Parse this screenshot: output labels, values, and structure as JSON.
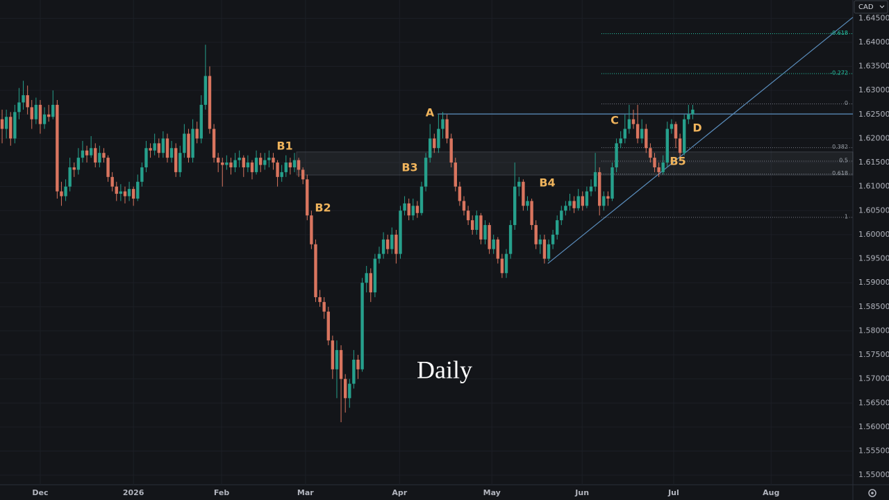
{
  "chart_data": {
    "type": "candlestick",
    "symbol": "CAD",
    "timeframe": "Daily",
    "colors": {
      "up": "#26a08c",
      "down": "#d9755f"
    },
    "xlim": [
      -0.5,
      200.8
    ],
    "xticks": [
      {
        "value": 9.0,
        "label": "Dec"
      },
      {
        "value": 31.0,
        "label": "2026"
      },
      {
        "value": 51.8,
        "label": "Feb"
      },
      {
        "value": 71.6,
        "label": "Mar"
      },
      {
        "value": 93.8,
        "label": "Apr"
      },
      {
        "value": 115.6,
        "label": "May"
      },
      {
        "value": 136.9,
        "label": "Jun"
      },
      {
        "value": 158.5,
        "label": "Jul"
      },
      {
        "value": 181.5,
        "label": "Aug"
      }
    ],
    "ylim": [
      1.548,
      1.6488
    ],
    "yticks": [
      {
        "value": 1.55,
        "label": "1.55000"
      },
      {
        "value": 1.555,
        "label": "1.55500"
      },
      {
        "value": 1.56,
        "label": "1.56000"
      },
      {
        "value": 1.565,
        "label": "1.56500"
      },
      {
        "value": 1.57,
        "label": "1.57000"
      },
      {
        "value": 1.575,
        "label": "1.57500"
      },
      {
        "value": 1.58,
        "label": "1.58000"
      },
      {
        "value": 1.585,
        "label": "1.58500"
      },
      {
        "value": 1.59,
        "label": "1.59000"
      },
      {
        "value": 1.595,
        "label": "1.59500"
      },
      {
        "value": 1.6,
        "label": "1.60000"
      },
      {
        "value": 1.605,
        "label": "1.60500"
      },
      {
        "value": 1.61,
        "label": "1.61000"
      },
      {
        "value": 1.615,
        "label": "1.61500"
      },
      {
        "value": 1.62,
        "label": "1.62000"
      },
      {
        "value": 1.625,
        "label": "1.62500"
      },
      {
        "value": 1.63,
        "label": "1.63000"
      },
      {
        "value": 1.635,
        "label": "1.63500"
      },
      {
        "value": 1.64,
        "label": "1.64000"
      },
      {
        "value": 1.645,
        "label": "1.64500"
      }
    ],
    "ohlc": [
      [
        1.624,
        1.626,
        1.619,
        1.622
      ],
      [
        1.622,
        1.626,
        1.62,
        1.6245
      ],
      [
        1.6245,
        1.6255,
        1.6185,
        1.62
      ],
      [
        1.62,
        1.627,
        1.619,
        1.6255
      ],
      [
        1.6255,
        1.6305,
        1.624,
        1.6275
      ],
      [
        1.6275,
        1.632,
        1.626,
        1.629
      ],
      [
        1.629,
        1.631,
        1.625,
        1.6265
      ],
      [
        1.6265,
        1.628,
        1.622,
        1.624
      ],
      [
        1.624,
        1.6285,
        1.623,
        1.627
      ],
      [
        1.627,
        1.628,
        1.621,
        1.623
      ],
      [
        1.623,
        1.6265,
        1.622,
        1.625
      ],
      [
        1.625,
        1.627,
        1.6235,
        1.6245
      ],
      [
        1.6245,
        1.63,
        1.624,
        1.627
      ],
      [
        1.627,
        1.628,
        1.6075,
        1.609
      ],
      [
        1.609,
        1.611,
        1.606,
        1.608
      ],
      [
        1.608,
        1.6115,
        1.607,
        1.61
      ],
      [
        1.61,
        1.616,
        1.609,
        1.614
      ],
      [
        1.614,
        1.615,
        1.612,
        1.6135
      ],
      [
        1.6135,
        1.618,
        1.6125,
        1.616
      ],
      [
        1.616,
        1.6195,
        1.615,
        1.6175
      ],
      [
        1.6175,
        1.6185,
        1.615,
        1.6165
      ],
      [
        1.6165,
        1.6205,
        1.616,
        1.618
      ],
      [
        1.618,
        1.619,
        1.614,
        1.615
      ],
      [
        1.615,
        1.6185,
        1.614,
        1.617
      ],
      [
        1.617,
        1.618,
        1.615,
        1.616
      ],
      [
        1.616,
        1.6165,
        1.611,
        1.612
      ],
      [
        1.612,
        1.613,
        1.609,
        1.61
      ],
      [
        1.61,
        1.611,
        1.607,
        1.6085
      ],
      [
        1.6085,
        1.6105,
        1.607,
        1.609
      ],
      [
        1.609,
        1.61,
        1.6065,
        1.608
      ],
      [
        1.608,
        1.611,
        1.607,
        1.6095
      ],
      [
        1.6095,
        1.61,
        1.606,
        1.6075
      ],
      [
        1.6075,
        1.6125,
        1.607,
        1.611
      ],
      [
        1.611,
        1.615,
        1.61,
        1.614
      ],
      [
        1.614,
        1.6195,
        1.613,
        1.618
      ],
      [
        1.618,
        1.619,
        1.616,
        1.6175
      ],
      [
        1.6175,
        1.621,
        1.6165,
        1.619
      ],
      [
        1.619,
        1.62,
        1.616,
        1.617
      ],
      [
        1.617,
        1.6215,
        1.616,
        1.62
      ],
      [
        1.62,
        1.621,
        1.615,
        1.616
      ],
      [
        1.616,
        1.6195,
        1.615,
        1.618
      ],
      [
        1.618,
        1.619,
        1.612,
        1.613
      ],
      [
        1.613,
        1.6185,
        1.612,
        1.617
      ],
      [
        1.617,
        1.623,
        1.616,
        1.621
      ],
      [
        1.621,
        1.622,
        1.615,
        1.616
      ],
      [
        1.616,
        1.624,
        1.615,
        1.622
      ],
      [
        1.622,
        1.6235,
        1.619,
        1.62
      ],
      [
        1.62,
        1.629,
        1.619,
        1.627
      ],
      [
        1.627,
        1.6395,
        1.626,
        1.633
      ],
      [
        1.633,
        1.635,
        1.621,
        1.622
      ],
      [
        1.622,
        1.623,
        1.615,
        1.616
      ],
      [
        1.616,
        1.617,
        1.613,
        1.615
      ],
      [
        1.615,
        1.616,
        1.61,
        1.6145
      ],
      [
        1.6145,
        1.6165,
        1.6135,
        1.615
      ],
      [
        1.615,
        1.616,
        1.6125,
        1.614
      ],
      [
        1.614,
        1.617,
        1.613,
        1.6155
      ],
      [
        1.6155,
        1.6175,
        1.614,
        1.616
      ],
      [
        1.616,
        1.6165,
        1.612,
        1.614
      ],
      [
        1.614,
        1.6165,
        1.613,
        1.615
      ],
      [
        1.615,
        1.6155,
        1.6115,
        1.613
      ],
      [
        1.613,
        1.6175,
        1.6125,
        1.616
      ],
      [
        1.616,
        1.617,
        1.613,
        1.6145
      ],
      [
        1.6145,
        1.617,
        1.6135,
        1.6155
      ],
      [
        1.6155,
        1.6175,
        1.614,
        1.616
      ],
      [
        1.616,
        1.617,
        1.6135,
        1.615
      ],
      [
        1.615,
        1.6155,
        1.61,
        1.612
      ],
      [
        1.612,
        1.6145,
        1.611,
        1.613
      ],
      [
        1.613,
        1.6165,
        1.612,
        1.615
      ],
      [
        1.615,
        1.616,
        1.6125,
        1.614
      ],
      [
        1.614,
        1.617,
        1.613,
        1.6155
      ],
      [
        1.6155,
        1.616,
        1.612,
        1.6135
      ],
      [
        1.6135,
        1.614,
        1.6105,
        1.6115
      ],
      [
        1.6115,
        1.6125,
        1.603,
        1.604
      ],
      [
        1.604,
        1.605,
        1.597,
        1.598
      ],
      [
        1.598,
        1.599,
        1.586,
        1.587
      ],
      [
        1.587,
        1.5885,
        1.585,
        1.586
      ],
      [
        1.586,
        1.587,
        1.5825,
        1.584
      ],
      [
        1.584,
        1.585,
        1.577,
        1.578
      ],
      [
        1.578,
        1.579,
        1.57,
        1.572
      ],
      [
        1.572,
        1.578,
        1.566,
        1.576
      ],
      [
        1.576,
        1.577,
        1.561,
        1.57
      ],
      [
        1.57,
        1.571,
        1.563,
        1.566
      ],
      [
        1.566,
        1.57,
        1.564,
        1.569
      ],
      [
        1.569,
        1.576,
        1.568,
        1.574
      ],
      [
        1.574,
        1.575,
        1.57,
        1.572
      ],
      [
        1.572,
        1.591,
        1.5715,
        1.59
      ],
      [
        1.59,
        1.5935,
        1.588,
        1.592
      ],
      [
        1.592,
        1.593,
        1.586,
        1.588
      ],
      [
        1.588,
        1.596,
        1.587,
        1.595
      ],
      [
        1.595,
        1.5975,
        1.594,
        1.596
      ],
      [
        1.596,
        1.6005,
        1.595,
        1.599
      ],
      [
        1.599,
        1.6,
        1.596,
        1.597
      ],
      [
        1.597,
        1.6015,
        1.596,
        1.6
      ],
      [
        1.6,
        1.601,
        1.594,
        1.596
      ],
      [
        1.596,
        1.606,
        1.595,
        1.605
      ],
      [
        1.605,
        1.608,
        1.604,
        1.6065
      ],
      [
        1.6065,
        1.6075,
        1.603,
        1.604
      ],
      [
        1.604,
        1.6075,
        1.603,
        1.606
      ],
      [
        1.606,
        1.607,
        1.6035,
        1.6045
      ],
      [
        1.6045,
        1.611,
        1.604,
        1.61
      ],
      [
        1.61,
        1.617,
        1.609,
        1.616
      ],
      [
        1.616,
        1.623,
        1.615,
        1.62
      ],
      [
        1.62,
        1.621,
        1.617,
        1.618
      ],
      [
        1.618,
        1.625,
        1.617,
        1.622
      ],
      [
        1.622,
        1.6255,
        1.62,
        1.624
      ],
      [
        1.624,
        1.625,
        1.619,
        1.62
      ],
      [
        1.62,
        1.621,
        1.614,
        1.615
      ],
      [
        1.615,
        1.616,
        1.609,
        1.61
      ],
      [
        1.61,
        1.611,
        1.606,
        1.607
      ],
      [
        1.607,
        1.608,
        1.604,
        1.605
      ],
      [
        1.605,
        1.606,
        1.602,
        1.603
      ],
      [
        1.603,
        1.604,
        1.6,
        1.601
      ],
      [
        1.601,
        1.605,
        1.6,
        1.604
      ],
      [
        1.604,
        1.6045,
        1.598,
        1.599
      ],
      [
        1.599,
        1.603,
        1.598,
        1.602
      ],
      [
        1.602,
        1.6025,
        1.596,
        1.597
      ],
      [
        1.597,
        1.6,
        1.596,
        1.599
      ],
      [
        1.599,
        1.5995,
        1.594,
        1.595
      ],
      [
        1.595,
        1.596,
        1.591,
        1.592
      ],
      [
        1.592,
        1.597,
        1.591,
        1.596
      ],
      [
        1.596,
        1.603,
        1.595,
        1.602
      ],
      [
        1.602,
        1.615,
        1.601,
        1.61
      ],
      [
        1.61,
        1.612,
        1.608,
        1.611
      ],
      [
        1.611,
        1.6115,
        1.605,
        1.606
      ],
      [
        1.606,
        1.608,
        1.605,
        1.607
      ],
      [
        1.607,
        1.6075,
        1.601,
        1.602
      ],
      [
        1.602,
        1.603,
        1.597,
        1.598
      ],
      [
        1.598,
        1.6,
        1.596,
        1.599
      ],
      [
        1.599,
        1.6,
        1.594,
        1.595
      ],
      [
        1.595,
        1.599,
        1.5945,
        1.598
      ],
      [
        1.598,
        1.601,
        1.597,
        1.6
      ],
      [
        1.6,
        1.604,
        1.599,
        1.603
      ],
      [
        1.603,
        1.606,
        1.602,
        1.605
      ],
      [
        1.605,
        1.607,
        1.604,
        1.606
      ],
      [
        1.606,
        1.6085,
        1.605,
        1.607
      ],
      [
        1.607,
        1.608,
        1.6045,
        1.6055
      ],
      [
        1.6055,
        1.6095,
        1.605,
        1.608
      ],
      [
        1.608,
        1.609,
        1.605,
        1.606
      ],
      [
        1.606,
        1.61,
        1.6055,
        1.609
      ],
      [
        1.609,
        1.6115,
        1.608,
        1.61
      ],
      [
        1.61,
        1.617,
        1.609,
        1.613
      ],
      [
        1.613,
        1.614,
        1.604,
        1.606
      ],
      [
        1.606,
        1.609,
        1.605,
        1.608
      ],
      [
        1.608,
        1.609,
        1.606,
        1.6075
      ],
      [
        1.6075,
        1.615,
        1.607,
        1.614
      ],
      [
        1.614,
        1.62,
        1.613,
        1.619
      ],
      [
        1.619,
        1.6215,
        1.618,
        1.62
      ],
      [
        1.62,
        1.625,
        1.619,
        1.622
      ],
      [
        1.622,
        1.627,
        1.621,
        1.624
      ],
      [
        1.624,
        1.626,
        1.622,
        1.623
      ],
      [
        1.623,
        1.627,
        1.619,
        1.62
      ],
      [
        1.62,
        1.624,
        1.619,
        1.622
      ],
      [
        1.622,
        1.623,
        1.617,
        1.618
      ],
      [
        1.618,
        1.619,
        1.615,
        1.616
      ],
      [
        1.616,
        1.617,
        1.613,
        1.614
      ],
      [
        1.614,
        1.615,
        1.612,
        1.613
      ],
      [
        1.613,
        1.6165,
        1.6125,
        1.615
      ],
      [
        1.615,
        1.6235,
        1.614,
        1.622
      ],
      [
        1.622,
        1.624,
        1.621,
        1.623
      ],
      [
        1.623,
        1.6235,
        1.618,
        1.62
      ],
      [
        1.62,
        1.621,
        1.616,
        1.617
      ],
      [
        1.617,
        1.625,
        1.6165,
        1.624
      ],
      [
        1.624,
        1.627,
        1.623,
        1.625
      ],
      [
        1.625,
        1.627,
        1.624,
        1.626
      ]
    ],
    "resistance_level": 1.6251,
    "zone": [
      1.6124,
      1.6172
    ],
    "trendline": {
      "x": [
        128.8,
        200.8
      ],
      "y": [
        1.594,
        1.6452
      ]
    },
    "fib_levels": [
      {
        "label": "-0.618",
        "value": 1.6418,
        "negative": true
      },
      {
        "label": "-0.272",
        "value": 1.6335,
        "negative": true
      },
      {
        "label": "0",
        "value": 1.6272
      },
      {
        "label": "0.382",
        "value": 1.6181
      },
      {
        "label": "0.5",
        "value": 1.6153
      },
      {
        "label": "0.618",
        "value": 1.6126
      },
      {
        "label": "1",
        "value": 1.6036
      }
    ],
    "annotations": [
      "A",
      "B1",
      "B2",
      "B3",
      "B4",
      "B5",
      "C",
      "D"
    ]
  }
}
